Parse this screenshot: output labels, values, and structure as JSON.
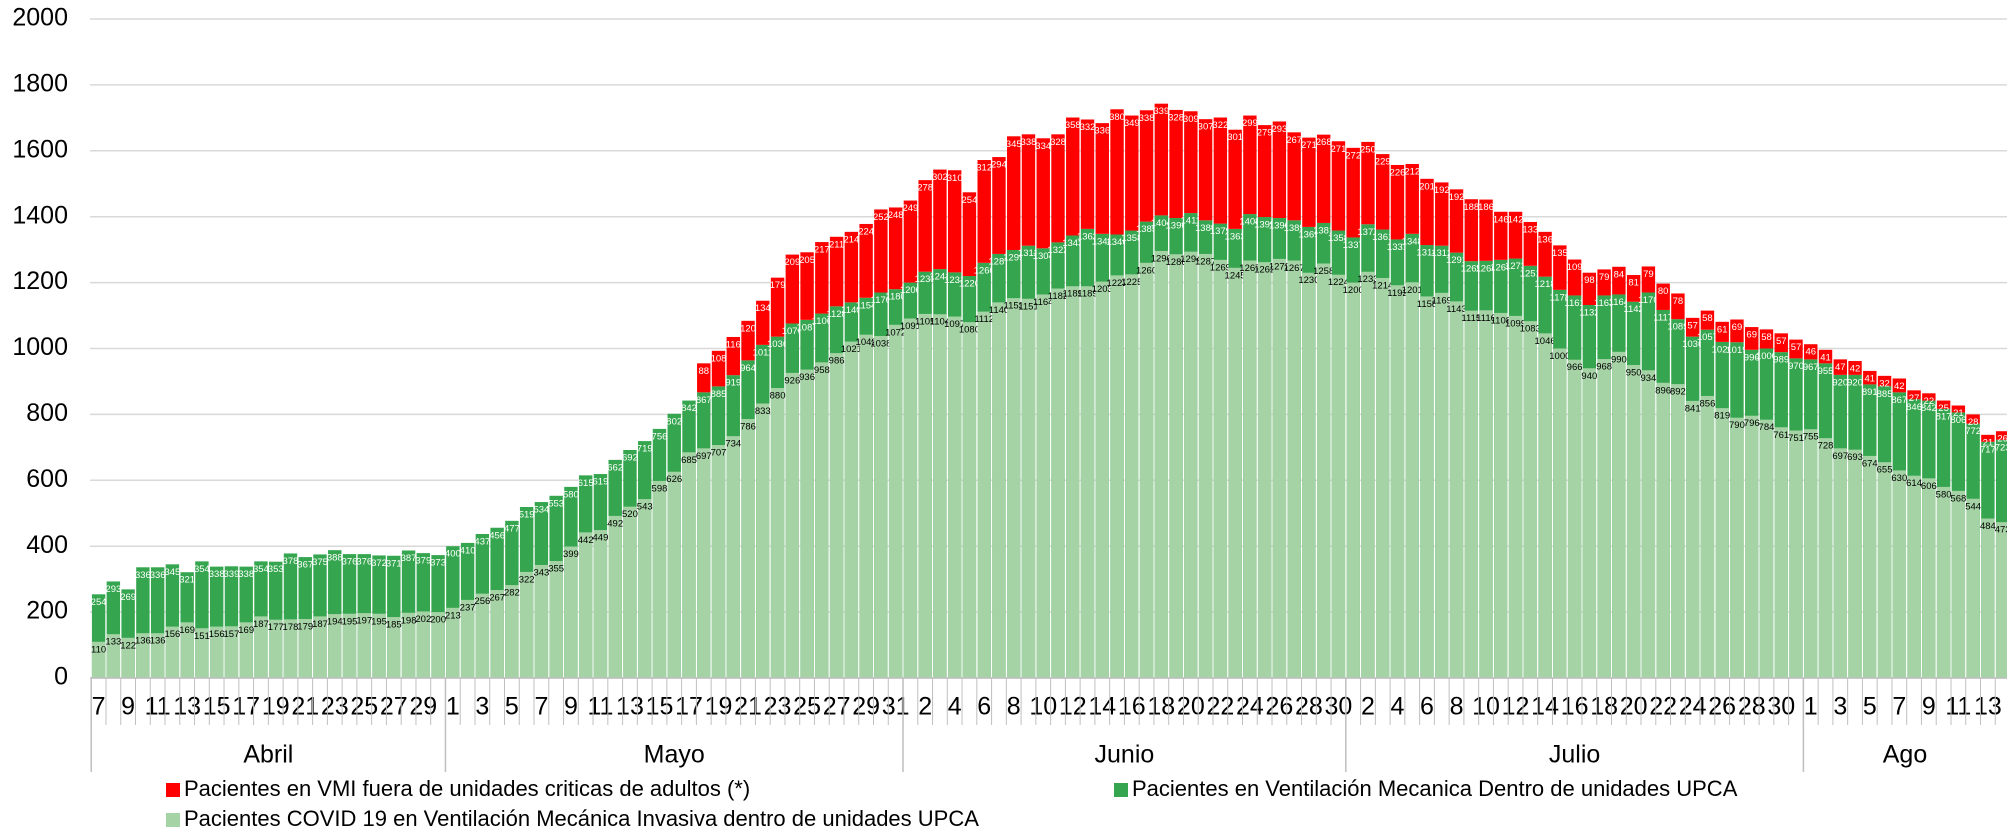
{
  "chart_data": {
    "type": "bar",
    "categories": [
      "7",
      null,
      "9",
      null,
      "11",
      null,
      "13",
      null,
      "15",
      null,
      "17",
      null,
      "19",
      null,
      "21",
      null,
      "23",
      null,
      "25",
      null,
      "27",
      null,
      "29",
      null,
      "1",
      null,
      "3",
      null,
      "5",
      null,
      "7",
      null,
      "9",
      null,
      "11",
      null,
      "13",
      null,
      "15",
      null,
      "17",
      null,
      "19",
      null,
      "21",
      null,
      "23",
      null,
      "25",
      null,
      "27",
      null,
      "29",
      null,
      "31",
      null,
      "2",
      null,
      "4",
      null,
      "6",
      null,
      "8",
      null,
      "10",
      null,
      "12",
      null,
      "14",
      null,
      "16",
      null,
      "18",
      null,
      "20",
      null,
      "22",
      null,
      "24",
      null,
      "26",
      null,
      "28",
      null,
      "30",
      null,
      "2",
      null,
      "4",
      null,
      "6",
      null,
      "8",
      null,
      "10",
      null,
      "12",
      null,
      "14",
      null,
      "16",
      null,
      "18",
      null,
      "20",
      null,
      "22",
      null,
      "24",
      null,
      "26",
      null,
      "28",
      null,
      "30",
      null,
      "1",
      null,
      "3",
      null,
      "5",
      null,
      "7",
      null,
      "9",
      null,
      "11",
      null,
      "13",
      null
    ],
    "months": [
      {
        "label": "Abril",
        "days": 24
      },
      {
        "label": "Mayo",
        "days": 31
      },
      {
        "label": "Junio",
        "days": 30
      },
      {
        "label": "Julio",
        "days": 31
      },
      {
        "label": "Ago",
        "days": 14
      }
    ],
    "series": [
      {
        "name": "Pacientes COVID 19 en Ventilación Mecánica Invasiva dentro de unidades UPCA",
        "color": "#a6d3a6",
        "values": [
          110,
          133,
          122,
          136,
          136,
          156,
          169,
          151,
          156,
          157,
          169,
          187,
          177,
          178,
          179,
          187,
          194,
          195,
          197,
          195,
          185,
          198,
          202,
          200,
          213,
          237,
          256,
          267,
          282,
          322,
          343,
          355,
          399,
          442,
          449,
          492,
          520,
          543,
          598,
          626,
          685,
          697,
          707,
          734,
          786,
          833,
          880,
          926,
          936,
          958,
          986,
          1021,
          1042,
          1038,
          1072,
          1091,
          1105,
          1104,
          1097,
          1080,
          1112,
          1140,
          1153,
          1151,
          1164,
          1182,
          1189,
          1189,
          1203,
          1222,
          1225,
          1260,
          1296,
          1286,
          1294,
          1287,
          1269,
          1245,
          1267,
          1262,
          1272,
          1267,
          1230,
          1258,
          1224,
          1200,
          1233,
          1214,
          1192,
          1201,
          1158,
          1169,
          1143,
          1115,
          1116,
          1108,
          1099,
          1083,
          1046,
          1000,
          966,
          940,
          968,
          990,
          950,
          934,
          896,
          892,
          841,
          856,
          819,
          790,
          796,
          784,
          761,
          751,
          755,
          728,
          697,
          693,
          674,
          655,
          630,
          614,
          606,
          580,
          568,
          544,
          484,
          473
        ]
      },
      {
        "name": "Pacientes en Ventilación Mecanica Dentro de unidades UPCA",
        "color": "#35a64f",
        "values": [
          254,
          293,
          269,
          336,
          336,
          345,
          321,
          354,
          338,
          339,
          338,
          354,
          353,
          378,
          367,
          375,
          388,
          376,
          376,
          372,
          371,
          387,
          379,
          373,
          400,
          410,
          437,
          456,
          477,
          519,
          534,
          553,
          580,
          615,
          619,
          662,
          692,
          719,
          756,
          802,
          842,
          867,
          885,
          919,
          964,
          1011,
          1036,
          1076,
          1087,
          1106,
          1128,
          1140,
          1154,
          1170,
          1180,
          1200,
          1233,
          1241,
          1231,
          1220,
          1260,
          1287,
          1299,
          1312,
          1304,
          1322,
          1343,
          1363,
          1348,
          1346,
          1358,
          1385,
          1404,
          1396,
          1411,
          1389,
          1379,
          1363,
          1408,
          1399,
          1396,
          1389,
          1369,
          1381,
          1358,
          1337,
          1377,
          1361,
          1331,
          1348,
          1314,
          1312,
          1291,
          1265,
          1266,
          1269,
          1273,
          1251,
          1218,
          1178,
          1161,
          1132,
          1161,
          1164,
          1142,
          1170,
          1117,
          1089,
          1036,
          1057,
          1020,
          1019,
          996,
          1000,
          989,
          970,
          967,
          955,
          920,
          920,
          891,
          885,
          867,
          846,
          842,
          817,
          806,
          772,
          717,
          723
        ]
      },
      {
        "name": "Pacientes en VMI fuera de unidades criticas de adultos (*)",
        "color": "#ff0000",
        "values": [
          0,
          0,
          0,
          0,
          0,
          0,
          0,
          0,
          0,
          0,
          0,
          0,
          0,
          0,
          0,
          0,
          0,
          0,
          0,
          0,
          0,
          0,
          0,
          0,
          0,
          0,
          0,
          0,
          0,
          0,
          0,
          0,
          0,
          0,
          0,
          0,
          0,
          0,
          0,
          0,
          0,
          88,
          108,
          116,
          120,
          134,
          179,
          209,
          205,
          217,
          211,
          214,
          224,
          252,
          248,
          249,
          278,
          302,
          310,
          254,
          312,
          294,
          345,
          338,
          334,
          328,
          358,
          332,
          336,
          380,
          349,
          338,
          339,
          328,
          309,
          307,
          322,
          301,
          299,
          279,
          293,
          267,
          271,
          268,
          271,
          272,
          250,
          229,
          226,
          212,
          201,
          192,
          192,
          188,
          186,
          146,
          142,
          133,
          136,
          135,
          109,
          98,
          79,
          84,
          81,
          79,
          80,
          78,
          57,
          58,
          61,
          69,
          69,
          58,
          57,
          57,
          46,
          41,
          47,
          42,
          41,
          32,
          42,
          27,
          22,
          25,
          21,
          28,
          21,
          26
        ]
      }
    ],
    "ylim": [
      0,
      2000
    ],
    "yticks": [
      0,
      200,
      400,
      600,
      800,
      1000,
      1200,
      1400,
      1600,
      1800,
      2000
    ],
    "grid": true
  }
}
